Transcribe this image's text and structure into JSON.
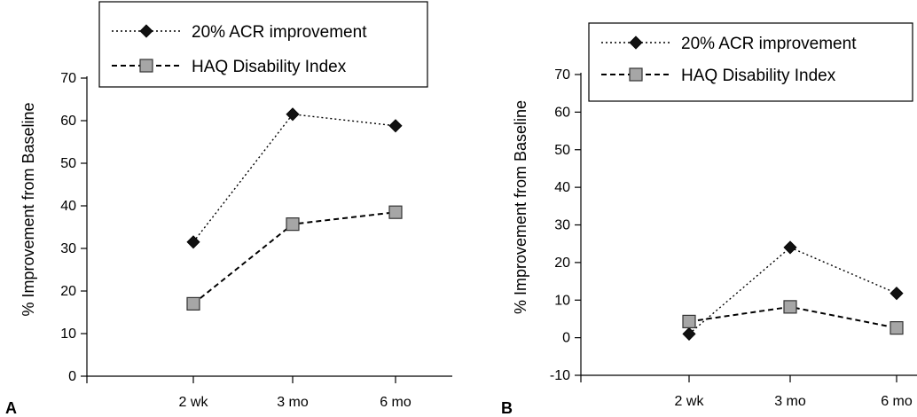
{
  "chart_data": [
    {
      "type": "line",
      "panel_label": "A",
      "categories": [
        "2 wk",
        "3 mo",
        "6 mo"
      ],
      "ylabel": "% Improvement from Baseline",
      "ylim": [
        0,
        70
      ],
      "yticks": [
        0,
        10,
        20,
        30,
        40,
        50,
        60,
        70
      ],
      "grid": false,
      "legend_position": "top",
      "series": [
        {
          "name": "20% ACR improvement",
          "values": [
            31.5,
            61.5,
            58.8
          ],
          "marker": "diamond",
          "line_style": "dotted",
          "color": "#111111"
        },
        {
          "name": "HAQ Disability Index",
          "values": [
            17,
            35.7,
            38.5
          ],
          "marker": "square",
          "line_style": "dashed",
          "color": "#a6a6a6"
        }
      ]
    },
    {
      "type": "line",
      "panel_label": "B",
      "categories": [
        "2 wk",
        "3 mo",
        "6 mo"
      ],
      "ylabel": "% Improvement from Baseline",
      "ylim": [
        -10,
        70
      ],
      "yticks": [
        -10,
        0,
        10,
        20,
        30,
        40,
        50,
        60,
        70
      ],
      "grid": false,
      "legend_position": "top",
      "series": [
        {
          "name": "20% ACR improvement",
          "values": [
            1,
            24,
            11.8
          ],
          "marker": "diamond",
          "line_style": "dotted",
          "color": "#111111"
        },
        {
          "name": "HAQ Disability Index",
          "values": [
            4.3,
            8.2,
            2.6
          ],
          "marker": "square",
          "line_style": "dashed",
          "color": "#a6a6a6"
        }
      ]
    }
  ]
}
